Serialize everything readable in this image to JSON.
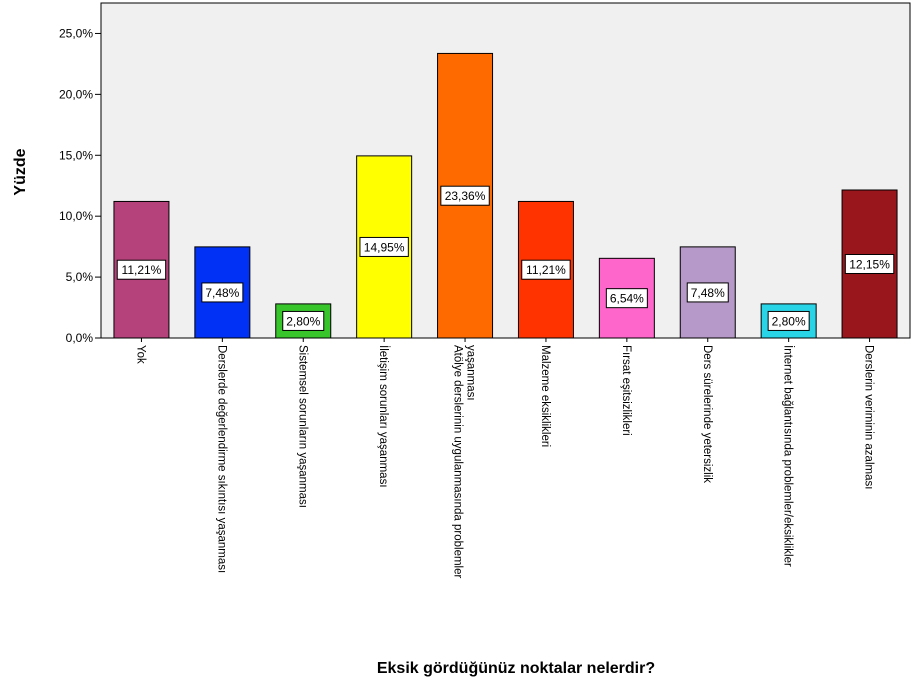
{
  "chart_data": {
    "type": "bar",
    "xlabel": "Eksik gördüğünüz noktalar nelerdir?",
    "ylabel": "Yüzde",
    "ylim": [
      0,
      27.5
    ],
    "yticks": [
      0,
      5,
      10,
      15,
      20,
      25
    ],
    "ytick_labels": [
      "0,0%",
      "5,0%",
      "10,0%",
      "15,0%",
      "20,0%",
      "25,0%"
    ],
    "grid": false,
    "categories": [
      "Yok",
      "Derslerde değerlendirme sıkıntısı yaşanması",
      "Sistemsel sorunların yaşanması",
      "İletişim sorunları yaşanması",
      "Atölye derslerinin uygulanmasında problemler yaşanması",
      "Malzeme eksiklikleri",
      "Fırsat eşitsizlikleri",
      "Ders sürelerinde yetersizlik",
      "İnternet bağlantısında problemler/eksiklikler",
      "Derslerin veriminin azalması"
    ],
    "values": [
      11.21,
      7.48,
      2.8,
      14.95,
      23.36,
      11.21,
      6.54,
      7.48,
      2.8,
      12.15
    ],
    "value_labels": [
      "11,21%",
      "7,48%",
      "2,80%",
      "14,95%",
      "23,36%",
      "11,21%",
      "6,54%",
      "7,48%",
      "2,80%",
      "12,15%"
    ],
    "colors": [
      "#b5427b",
      "#0031f5",
      "#38c52c",
      "#ffff00",
      "#ff6a00",
      "#ff3300",
      "#ff66cc",
      "#b699c9",
      "#29d4e6",
      "#99161d"
    ]
  }
}
